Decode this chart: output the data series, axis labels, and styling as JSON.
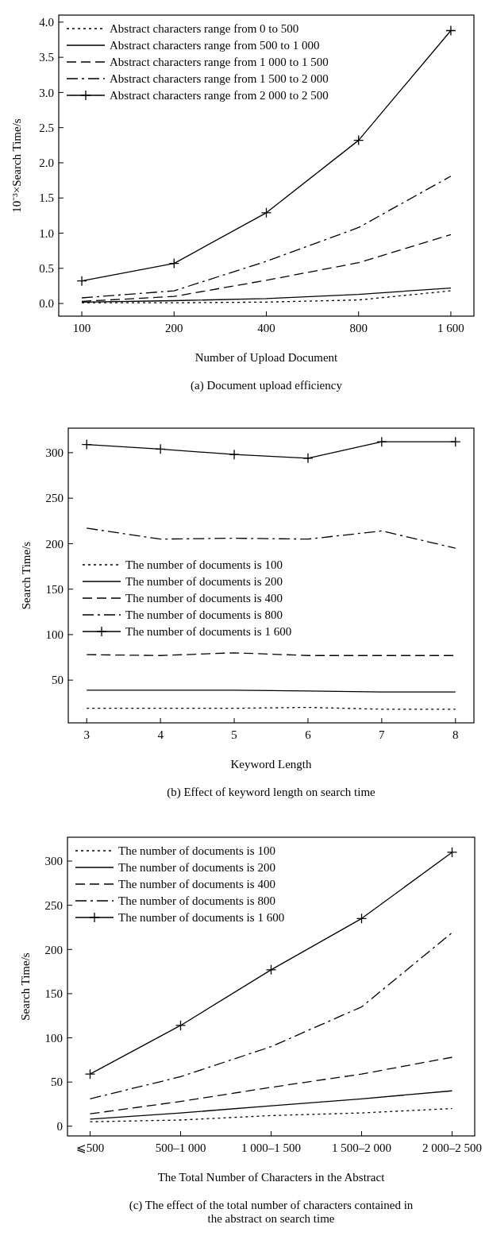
{
  "chart_data": [
    {
      "type": "line",
      "title": "(a)  Document upload efficiency",
      "xlabel": "Number of Upload Document",
      "ylabel": "10⁻³×Search Time/s",
      "categories": [
        "100",
        "200",
        "400",
        "800",
        "1 600"
      ],
      "ylim": [
        -0.18,
        4.1
      ],
      "yticks": [
        {
          "value": 0,
          "label": "0.0"
        },
        {
          "value": 0.5,
          "label": "0.5"
        },
        {
          "value": 1,
          "label": "1.0"
        },
        {
          "value": 1.5,
          "label": "1.5"
        },
        {
          "value": 2,
          "label": "2.0"
        },
        {
          "value": 2.5,
          "label": "2.5"
        },
        {
          "value": 3,
          "label": "3.0"
        },
        {
          "value": 3.5,
          "label": "3.5"
        },
        {
          "value": 4,
          "label": "4.0"
        }
      ],
      "legend": "top left",
      "grid": false,
      "series": [
        {
          "name": "Abstract characters range from 0 to 500",
          "color": "#000000",
          "line_style": "dotted",
          "marker": "none",
          "values": [
            0.01,
            0.01,
            0.02,
            0.05,
            0.18
          ]
        },
        {
          "name": "Abstract characters range from 500 to 1 000",
          "color": "#000000",
          "line_style": "solid",
          "marker": "none",
          "values": [
            0.02,
            0.04,
            0.07,
            0.13,
            0.22
          ]
        },
        {
          "name": "Abstract characters range from 1 000 to 1 500",
          "color": "#000000",
          "line_style": "dashed",
          "marker": "none",
          "values": [
            0.03,
            0.1,
            0.33,
            0.58,
            0.98
          ]
        },
        {
          "name": "Abstract characters range from 1 500 to 2 000",
          "color": "#000000",
          "line_style": "dashdot",
          "marker": "none",
          "values": [
            0.08,
            0.18,
            0.6,
            1.08,
            1.81
          ]
        },
        {
          "name": "Abstract characters range from 2 000 to 2 500",
          "color": "#000000",
          "line_style": "solid",
          "marker": "cross",
          "values": [
            0.32,
            0.57,
            1.29,
            2.32,
            3.88
          ]
        }
      ]
    },
    {
      "type": "line",
      "title": "(b)  Effect of keyword length on search time",
      "xlabel": "Keyword Length",
      "ylabel": "Search Time/s",
      "x": [
        3,
        4,
        5,
        6,
        7,
        8
      ],
      "xlim": [
        2.75,
        8.25
      ],
      "xticks": [
        3,
        4,
        5,
        6,
        7,
        8
      ],
      "ylim": [
        3,
        327
      ],
      "yticks": [
        50,
        100,
        150,
        200,
        250,
        300
      ],
      "legend": "left",
      "grid": false,
      "series": [
        {
          "name": "The number of documents is 100",
          "color": "#000000",
          "line_style": "dotted",
          "marker": "none",
          "values": [
            19,
            19,
            19,
            20,
            18,
            18
          ]
        },
        {
          "name": "The number of documents is 200",
          "color": "#000000",
          "line_style": "solid",
          "marker": "none",
          "values": [
            39,
            39,
            39,
            38,
            37,
            37
          ]
        },
        {
          "name": "The number of documents is 400",
          "color": "#000000",
          "line_style": "dashed",
          "marker": "none",
          "values": [
            78,
            77,
            80,
            77,
            77,
            77
          ]
        },
        {
          "name": "The number of documents is 800",
          "color": "#000000",
          "line_style": "dashdot",
          "marker": "none",
          "values": [
            217,
            205,
            206,
            205,
            214,
            195
          ]
        },
        {
          "name": "The number of documents is 1 600",
          "color": "#000000",
          "line_style": "solid",
          "marker": "cross",
          "values": [
            309,
            304,
            298,
            294,
            312,
            312
          ]
        }
      ]
    },
    {
      "type": "line",
      "title": "(c)  The effect of the total number of characters contained in the abstract on search time",
      "xlabel": "The Total Number of Characters in the Abstract",
      "ylabel": "Search Time/s",
      "categories": [
        "⩽500",
        "500–1 000",
        "1 000–1 500",
        "1 500–2 000",
        "2 000–2 500"
      ],
      "ylim": [
        -11,
        327
      ],
      "yticks": [
        0,
        50,
        100,
        150,
        200,
        250,
        300
      ],
      "legend": "top left",
      "grid": false,
      "series": [
        {
          "name": "The number of documents is 100",
          "color": "#000000",
          "line_style": "dotted",
          "marker": "none",
          "values": [
            5,
            7,
            12,
            15,
            20
          ]
        },
        {
          "name": "The number of documents is 200",
          "color": "#000000",
          "line_style": "solid",
          "marker": "none",
          "values": [
            8,
            15,
            23,
            31,
            40
          ]
        },
        {
          "name": "The number of documents is 400",
          "color": "#000000",
          "line_style": "dashed",
          "marker": "none",
          "values": [
            14,
            28,
            44,
            59,
            78
          ]
        },
        {
          "name": "The number of documents is 800",
          "color": "#000000",
          "line_style": "dashdot",
          "marker": "none",
          "values": [
            31,
            56,
            90,
            135,
            219
          ]
        },
        {
          "name": "The number of documents is 1 600",
          "color": "#000000",
          "line_style": "solid",
          "marker": "cross",
          "values": [
            59,
            114,
            177,
            235,
            310
          ]
        }
      ]
    }
  ]
}
